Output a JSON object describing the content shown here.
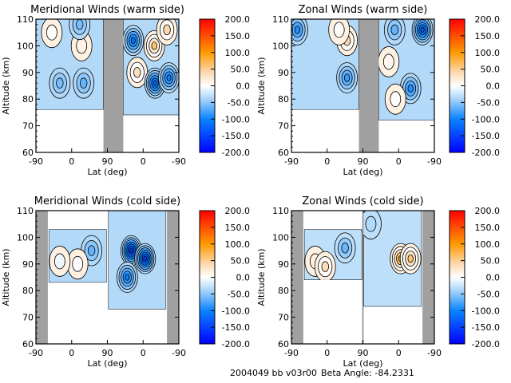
{
  "footer": {
    "id_text": "2004049 bb v03r00",
    "beta_text": "Beta Angle: -84.2331"
  },
  "colorbar": {
    "range": [
      -200,
      200
    ],
    "tick_labels": [
      "200.0",
      "150.0",
      "100.0",
      "50.0",
      "0.0",
      "-50.0",
      "-100.0",
      "-150.0",
      "-200.0"
    ],
    "stops": [
      {
        "v": -200,
        "color": "#0000ff"
      },
      {
        "v": -100,
        "color": "#0a84ff"
      },
      {
        "v": -40,
        "color": "#a8d4f8"
      },
      {
        "v": 0,
        "color": "#ffffff"
      },
      {
        "v": 40,
        "color": "#fcd9b0"
      },
      {
        "v": 100,
        "color": "#ff9a00"
      },
      {
        "v": 200,
        "color": "#ff0000"
      }
    ]
  },
  "chart_data": [
    {
      "type": "heatmap",
      "title": "Meridional Winds (warm side)",
      "xlabel": "Lat (deg)",
      "ylabel": "Altitude (km)",
      "x_tick_labels": [
        "-90",
        "0",
        "90",
        "0",
        "-90"
      ],
      "x_range": [
        0,
        360
      ],
      "ylim": [
        60,
        110
      ],
      "y_ticks": [
        "60",
        "70",
        "80",
        "90",
        "100",
        "110"
      ],
      "no_data_bands": [
        [
          170,
          220
        ]
      ],
      "data_extent": [
        {
          "x": [
            0,
            170
          ],
          "alt": [
            76,
            110
          ]
        },
        {
          "x": [
            220,
            360
          ],
          "alt": [
            74,
            110
          ]
        }
      ],
      "background_value": -35,
      "features": [
        {
          "x": 40,
          "alt": 105,
          "value": 40
        },
        {
          "x": 115,
          "alt": 100,
          "value": 60
        },
        {
          "x": 110,
          "alt": 108,
          "value": -70
        },
        {
          "x": 120,
          "alt": 86,
          "value": -80
        },
        {
          "x": 60,
          "alt": 86,
          "value": -70
        },
        {
          "x": 255,
          "alt": 90,
          "value": 70
        },
        {
          "x": 298,
          "alt": 100,
          "value": 90
        },
        {
          "x": 300,
          "alt": 86,
          "value": -140
        },
        {
          "x": 335,
          "alt": 88,
          "value": -120
        },
        {
          "x": 245,
          "alt": 102,
          "value": -130
        },
        {
          "x": 330,
          "alt": 106,
          "value": 80
        }
      ]
    },
    {
      "type": "heatmap",
      "title": "Zonal Winds (warm side)",
      "xlabel": "Lat (deg)",
      "ylabel": "Altitude (km)",
      "x_tick_labels": [
        "-90",
        "0",
        "90",
        "0",
        "-90"
      ],
      "x_range": [
        0,
        360
      ],
      "ylim": [
        60,
        110
      ],
      "y_ticks": [
        "60",
        "70",
        "80",
        "90",
        "100",
        "110"
      ],
      "no_data_bands": [
        [
          170,
          220
        ]
      ],
      "data_extent": [
        {
          "x": [
            0,
            170
          ],
          "alt": [
            76,
            110
          ]
        },
        {
          "x": [
            220,
            360
          ],
          "alt": [
            72,
            110
          ]
        }
      ],
      "background_value": -35,
      "features": [
        {
          "x": 140,
          "alt": 102,
          "value": 80
        },
        {
          "x": 120,
          "alt": 106,
          "value": 40
        },
        {
          "x": 140,
          "alt": 88,
          "value": -100
        },
        {
          "x": 15,
          "alt": 106,
          "value": -110
        },
        {
          "x": 245,
          "alt": 94,
          "value": 50
        },
        {
          "x": 300,
          "alt": 84,
          "value": -110
        },
        {
          "x": 330,
          "alt": 106,
          "value": -150
        },
        {
          "x": 260,
          "alt": 106,
          "value": -80
        },
        {
          "x": 262,
          "alt": 80,
          "value": 40
        }
      ]
    },
    {
      "type": "heatmap",
      "title": "Meridional Winds (cold side)",
      "xlabel": "Lat (deg)",
      "ylabel": "Altitude (km)",
      "x_tick_labels": [
        "-90",
        "0",
        "90",
        "0",
        "-90"
      ],
      "x_range": [
        0,
        360
      ],
      "ylim": [
        60,
        110
      ],
      "y_ticks": [
        "60",
        "70",
        "80",
        "90",
        "100",
        "110"
      ],
      "no_data_bands": [
        [
          0,
          30
        ],
        [
          330,
          360
        ]
      ],
      "data_extent": [
        {
          "x": [
            32,
            178
          ],
          "alt": [
            83,
            103
          ]
        },
        {
          "x": [
            182,
            328
          ],
          "alt": [
            73,
            110
          ]
        }
      ],
      "background_value": -35,
      "features": [
        {
          "x": 140,
          "alt": 95,
          "value": -80
        },
        {
          "x": 105,
          "alt": 90,
          "value": 30
        },
        {
          "x": 60,
          "alt": 91,
          "value": 20
        },
        {
          "x": 240,
          "alt": 95,
          "value": -180
        },
        {
          "x": 275,
          "alt": 92,
          "value": -170
        },
        {
          "x": 230,
          "alt": 85,
          "value": -120
        }
      ]
    },
    {
      "type": "heatmap",
      "title": "Zonal Winds (cold side)",
      "xlabel": "Lat (deg)",
      "ylabel": "Altitude (km)",
      "x_tick_labels": [
        "-90",
        "0",
        "90",
        "0",
        "-90"
      ],
      "x_range": [
        0,
        360
      ],
      "ylim": [
        60,
        110
      ],
      "y_ticks": [
        "60",
        "70",
        "80",
        "90",
        "100",
        "110"
      ],
      "no_data_bands": [
        [
          0,
          30
        ],
        [
          178,
          182
        ],
        [
          330,
          360
        ]
      ],
      "data_extent": [
        {
          "x": [
            32,
            178
          ],
          "alt": [
            84,
            103
          ]
        },
        {
          "x": [
            182,
            328
          ],
          "alt": [
            74,
            110
          ]
        }
      ],
      "background_value": -30,
      "features": [
        {
          "x": 60,
          "alt": 91,
          "value": 60
        },
        {
          "x": 85,
          "alt": 89,
          "value": 70
        },
        {
          "x": 135,
          "alt": 96,
          "value": -80
        },
        {
          "x": 275,
          "alt": 92,
          "value": 120
        },
        {
          "x": 300,
          "alt": 92,
          "value": 90
        },
        {
          "x": 200,
          "alt": 105,
          "value": -40
        }
      ]
    }
  ]
}
